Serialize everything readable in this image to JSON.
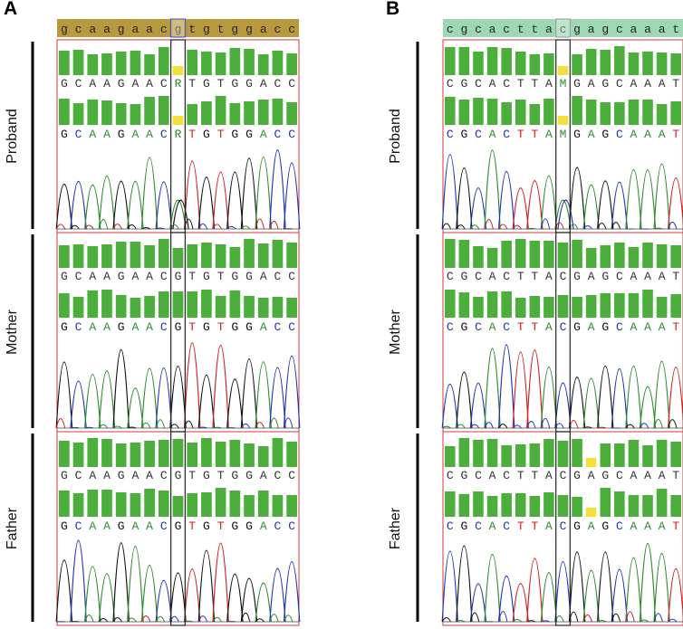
{
  "panels": [
    {
      "letter": "A",
      "reference": "gcaagaacgtgtggacc",
      "colors": {
        "ref_bar": "#b89a3c",
        "frame": "#d63a3a"
      },
      "samples": [
        {
          "label": "Proband",
          "seq": "GCAAGAACRTGTGGACC",
          "low_idx": [
            8
          ]
        },
        {
          "label": "Mother",
          "seq": "GCAAGAACGTGTGGACC",
          "low_idx": []
        },
        {
          "label": "Father",
          "seq": "GCAAGAACGTGTGGACC",
          "low_idx": []
        }
      ]
    },
    {
      "letter": "B",
      "reference": "cgcacttacgagcaaat",
      "colors": {
        "ref_bar": "#9ed7b4",
        "frame": "#d63a3a"
      },
      "samples": [
        {
          "label": "Proband",
          "seq": "CGCACTTAMGAGCAAAT",
          "low_idx": [
            8
          ]
        },
        {
          "label": "Mother",
          "seq": "CGCACTTACGAGCAAAT",
          "low_idx": []
        },
        {
          "label": "Father",
          "seq": "CGCACTTACGAGCAAAT",
          "low_idx": [
            10
          ]
        }
      ]
    }
  ],
  "base_colors": {
    "A": "#2e8b2e",
    "C": "#2233bb",
    "G": "#111111",
    "T": "#cc2222",
    "R": "#2e8b2e",
    "M": "#2e8b2e"
  },
  "quality_color": "#4caf3c",
  "low_quality_color": "#f2e13a"
}
